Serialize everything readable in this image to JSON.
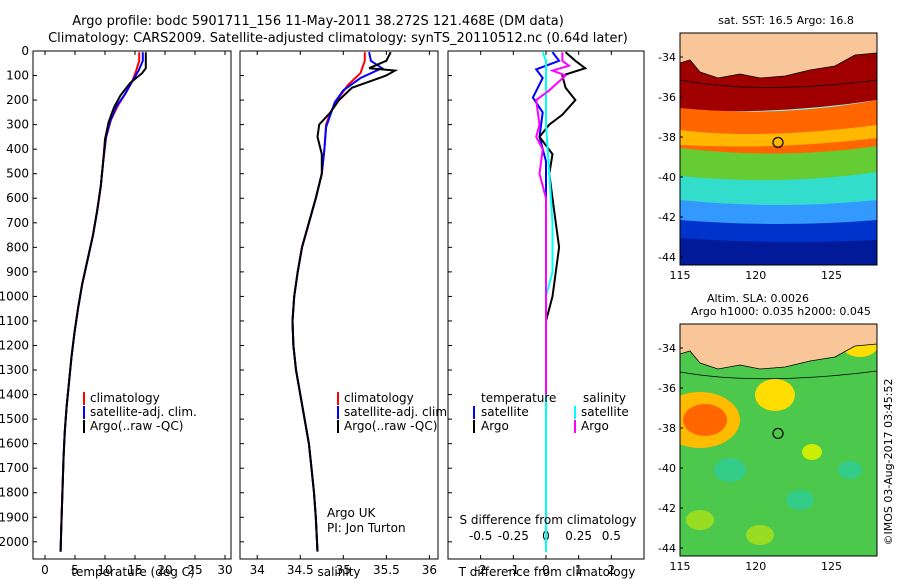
{
  "header": {
    "title_line1": "Argo profile: bodc 5901711_156 11-May-2011 38.272S 121.468E (DM data)",
    "title_line2": "Climatology: CARS2009. Satellite-adjusted climatology: synTS_20110512.nc (0.64d later)"
  },
  "side_label": "©IMOS 03-Aug-2017 03:45:52",
  "colors": {
    "climatology": "#ff0000",
    "satellite": "#0000ff",
    "argo": "#000000",
    "salinity_satellite": "#00ffff",
    "salinity_argo": "#ff00ff",
    "land": "#f9c699"
  },
  "chart_data": [
    {
      "type": "line",
      "id": "temperature-profile",
      "xlabel": "temperature (deg C)",
      "ylabel": "",
      "xlim": [
        -2,
        31
      ],
      "ylim": [
        2070,
        0
      ],
      "xticks": [
        0,
        5,
        10,
        15,
        20,
        25,
        30
      ],
      "yticks": [
        0,
        100,
        200,
        300,
        400,
        500,
        600,
        700,
        800,
        900,
        1000,
        1100,
        1200,
        1300,
        1400,
        1500,
        1600,
        1700,
        1800,
        1900,
        2000
      ],
      "legend": [
        "climatology",
        "satellite-adj. clim.",
        "Argo(..raw -QC)"
      ],
      "legend_position": "lower-center",
      "series": [
        {
          "name": "climatology",
          "color": "#ff0000",
          "points": [
            [
              15.7,
              5
            ],
            [
              15.7,
              40
            ],
            [
              15.2,
              80
            ],
            [
              14.6,
              120
            ],
            [
              13.5,
              170
            ],
            [
              12.2,
              220
            ],
            [
              11.0,
              280
            ],
            [
              10.2,
              350
            ],
            [
              9.7,
              450
            ],
            [
              9.3,
              550
            ],
            [
              8.7,
              650
            ],
            [
              8.0,
              750
            ],
            [
              7.1,
              850
            ],
            [
              6.2,
              950
            ],
            [
              5.5,
              1050
            ],
            [
              4.9,
              1150
            ],
            [
              4.4,
              1250
            ],
            [
              4.0,
              1350
            ],
            [
              3.6,
              1450
            ],
            [
              3.3,
              1550
            ],
            [
              3.1,
              1650
            ],
            [
              2.9,
              1800
            ],
            [
              2.7,
              1950
            ],
            [
              2.6,
              2040
            ]
          ]
        },
        {
          "name": "satellite-adj. clim.",
          "color": "#0000ff",
          "points": [
            [
              16.3,
              5
            ],
            [
              16.3,
              40
            ],
            [
              15.6,
              80
            ],
            [
              14.4,
              130
            ],
            [
              13.2,
              180
            ],
            [
              11.8,
              230
            ],
            [
              10.8,
              290
            ],
            [
              10.1,
              360
            ],
            [
              9.7,
              450
            ],
            [
              9.3,
              550
            ],
            [
              8.7,
              650
            ],
            [
              8.0,
              750
            ],
            [
              7.1,
              850
            ],
            [
              6.2,
              950
            ],
            [
              5.5,
              1050
            ],
            [
              4.9,
              1150
            ],
            [
              4.4,
              1250
            ],
            [
              4.0,
              1350
            ],
            [
              3.6,
              1450
            ],
            [
              3.3,
              1550
            ],
            [
              3.1,
              1650
            ],
            [
              2.9,
              1800
            ],
            [
              2.7,
              1950
            ],
            [
              2.6,
              2040
            ]
          ]
        },
        {
          "name": "Argo(..raw -QC)",
          "color": "#000000",
          "points": [
            [
              16.8,
              5
            ],
            [
              16.8,
              70
            ],
            [
              16.2,
              90
            ],
            [
              14.2,
              130
            ],
            [
              12.6,
              180
            ],
            [
              11.5,
              230
            ],
            [
              10.6,
              290
            ],
            [
              10.0,
              360
            ],
            [
              9.7,
              450
            ],
            [
              9.3,
              550
            ],
            [
              8.7,
              650
            ],
            [
              8.0,
              750
            ],
            [
              7.1,
              850
            ],
            [
              6.2,
              950
            ],
            [
              5.5,
              1050
            ],
            [
              4.9,
              1150
            ],
            [
              4.4,
              1250
            ],
            [
              4.0,
              1350
            ],
            [
              3.6,
              1450
            ],
            [
              3.3,
              1550
            ],
            [
              3.1,
              1650
            ],
            [
              2.9,
              1800
            ],
            [
              2.7,
              1950
            ],
            [
              2.6,
              2040
            ]
          ]
        }
      ]
    },
    {
      "type": "line",
      "id": "salinity-profile",
      "xlabel": "salinity",
      "ylabel": "",
      "xlim": [
        33.8,
        36.1
      ],
      "ylim": [
        2070,
        0
      ],
      "xticks": [
        34,
        34.5,
        35,
        35.5,
        36
      ],
      "legend": [
        "climatology",
        "satellite-adj. clim.",
        "Argo(..raw -QC)"
      ],
      "legend_position": "lower-center",
      "annotation_line1": "Argo UK",
      "annotation_line2": "PI: Jon Turton",
      "series": [
        {
          "name": "climatology",
          "color": "#ff0000",
          "points": [
            [
              35.25,
              5
            ],
            [
              35.25,
              40
            ],
            [
              35.2,
              90
            ],
            [
              35.05,
              140
            ],
            [
              34.95,
              190
            ],
            [
              34.85,
              250
            ],
            [
              34.8,
              300
            ],
            [
              34.78,
              400
            ],
            [
              34.75,
              500
            ],
            [
              34.68,
              600
            ],
            [
              34.6,
              700
            ],
            [
              34.52,
              800
            ],
            [
              34.47,
              900
            ],
            [
              34.43,
              1000
            ],
            [
              34.41,
              1100
            ],
            [
              34.42,
              1200
            ],
            [
              34.45,
              1300
            ],
            [
              34.5,
              1400
            ],
            [
              34.55,
              1500
            ],
            [
              34.6,
              1600
            ],
            [
              34.63,
              1700
            ],
            [
              34.66,
              1800
            ],
            [
              34.68,
              1900
            ],
            [
              34.7,
              2040
            ]
          ]
        },
        {
          "name": "satellite-adj. clim.",
          "color": "#0000ff",
          "points": [
            [
              35.3,
              5
            ],
            [
              35.32,
              40
            ],
            [
              35.45,
              70
            ],
            [
              35.2,
              110
            ],
            [
              35.0,
              160
            ],
            [
              34.9,
              210
            ],
            [
              34.85,
              260
            ],
            [
              34.8,
              310
            ],
            [
              34.78,
              400
            ],
            [
              34.75,
              500
            ],
            [
              34.68,
              600
            ],
            [
              34.6,
              700
            ],
            [
              34.52,
              800
            ],
            [
              34.47,
              900
            ],
            [
              34.43,
              1000
            ],
            [
              34.41,
              1100
            ],
            [
              34.42,
              1200
            ],
            [
              34.45,
              1300
            ],
            [
              34.5,
              1400
            ],
            [
              34.55,
              1500
            ],
            [
              34.6,
              1600
            ],
            [
              34.63,
              1700
            ],
            [
              34.66,
              1800
            ],
            [
              34.68,
              1900
            ],
            [
              34.7,
              2040
            ]
          ]
        },
        {
          "name": "Argo(..raw -QC)",
          "color": "#000000",
          "points": [
            [
              35.55,
              5
            ],
            [
              35.5,
              40
            ],
            [
              35.3,
              70
            ],
            [
              35.6,
              80
            ],
            [
              35.5,
              100
            ],
            [
              35.1,
              150
            ],
            [
              34.95,
              200
            ],
            [
              34.85,
              250
            ],
            [
              34.72,
              300
            ],
            [
              34.7,
              350
            ],
            [
              34.75,
              420
            ],
            [
              34.75,
              500
            ],
            [
              34.68,
              600
            ],
            [
              34.6,
              700
            ],
            [
              34.52,
              800
            ],
            [
              34.47,
              900
            ],
            [
              34.43,
              1000
            ],
            [
              34.41,
              1100
            ],
            [
              34.42,
              1200
            ],
            [
              34.45,
              1300
            ],
            [
              34.5,
              1400
            ],
            [
              34.55,
              1500
            ],
            [
              34.6,
              1600
            ],
            [
              34.63,
              1700
            ],
            [
              34.66,
              1800
            ],
            [
              34.68,
              1900
            ],
            [
              34.7,
              2040
            ]
          ]
        }
      ]
    },
    {
      "type": "line",
      "id": "difference-profile",
      "xlabel": "T difference from climatology",
      "xlabel_top": "S difference from climatology",
      "ylabel": "",
      "xlim": [
        -3,
        3
      ],
      "ylim": [
        2070,
        0
      ],
      "xticks": [
        -2,
        -1,
        0,
        1,
        2
      ],
      "xticks_S": [
        "-0.5",
        "-0.25",
        "0",
        "0.25",
        "0.5"
      ],
      "legend_temperature_header": "temperature",
      "legend_salinity_header": "salinity",
      "legend": [
        "satellite",
        "Argo",
        "satellite",
        "Argo"
      ],
      "legend_position": "lower-center",
      "series": [
        {
          "name": "satellite",
          "color": "#0000ff",
          "points": [
            [
              0.2,
              5
            ],
            [
              0.4,
              40
            ],
            [
              -0.3,
              75
            ],
            [
              -0.1,
              110
            ],
            [
              -0.4,
              190
            ],
            [
              -0.1,
              250
            ],
            [
              -0.2,
              350
            ],
            [
              0,
              450
            ],
            [
              0,
              600
            ],
            [
              0,
              800
            ],
            [
              0,
              1000
            ],
            [
              0,
              1200
            ],
            [
              0,
              1400
            ],
            [
              0,
              1600
            ],
            [
              0,
              1800
            ],
            [
              0,
              2040
            ]
          ]
        },
        {
          "name": "Argo",
          "color": "#000000",
          "points": [
            [
              0.6,
              5
            ],
            [
              0.9,
              40
            ],
            [
              1.2,
              70
            ],
            [
              0.5,
              100
            ],
            [
              0.6,
              150
            ],
            [
              0.9,
              200
            ],
            [
              0.5,
              260
            ],
            [
              0.1,
              300
            ],
            [
              -0.2,
              350
            ],
            [
              0.2,
              420
            ],
            [
              0.1,
              500
            ],
            [
              0.2,
              600
            ],
            [
              0.3,
              700
            ],
            [
              0.4,
              800
            ],
            [
              0.3,
              900
            ],
            [
              0.2,
              1000
            ],
            [
              0,
              1100
            ],
            [
              0,
              1400
            ],
            [
              0,
              1700
            ],
            [
              0,
              2040
            ]
          ]
        },
        {
          "name": "salinity satellite",
          "color": "#00ffff",
          "points": [
            [
              -0.1,
              5
            ],
            [
              0,
              40
            ],
            [
              0,
              100
            ],
            [
              0,
              300
            ],
            [
              0.1,
              500
            ],
            [
              0.2,
              700
            ],
            [
              0.2,
              900
            ],
            [
              0,
              1000
            ],
            [
              0,
              1400
            ],
            [
              0,
              2040
            ]
          ]
        },
        {
          "name": "salinity Argo",
          "color": "#ff00ff",
          "points": [
            [
              0.5,
              5
            ],
            [
              0.5,
              40
            ],
            [
              0.7,
              60
            ],
            [
              0.2,
              80
            ],
            [
              0.6,
              100
            ],
            [
              0.1,
              160
            ],
            [
              -0.3,
              200
            ],
            [
              -0.2,
              300
            ],
            [
              -0.3,
              350
            ],
            [
              -0.1,
              400
            ],
            [
              -0.2,
              500
            ],
            [
              0,
              600
            ],
            [
              0,
              900
            ],
            [
              0,
              1400
            ]
          ]
        }
      ]
    },
    {
      "type": "heatmap",
      "id": "sst-map",
      "title": "sat. SST: 16.5 Argo: 16.8",
      "xlim": [
        115,
        128
      ],
      "ylim": [
        -44.4,
        -32.8
      ],
      "xticks": [
        115,
        120,
        125
      ],
      "yticks": [
        -34,
        -36,
        -38,
        -40,
        -42,
        -44
      ],
      "marker": {
        "lon": 121.468,
        "lat": -38.272
      }
    },
    {
      "type": "heatmap",
      "id": "sla-map",
      "title_line1": "Altim. SLA: 0.0026",
      "title_line2": "Argo h1000: 0.035 h2000: 0.045",
      "xlim": [
        115,
        128
      ],
      "ylim": [
        -44.4,
        -32.8
      ],
      "xticks": [
        115,
        120,
        125
      ],
      "yticks": [
        -34,
        -36,
        -38,
        -40,
        -42,
        -44
      ],
      "marker": {
        "lon": 121.468,
        "lat": -38.272
      }
    }
  ]
}
